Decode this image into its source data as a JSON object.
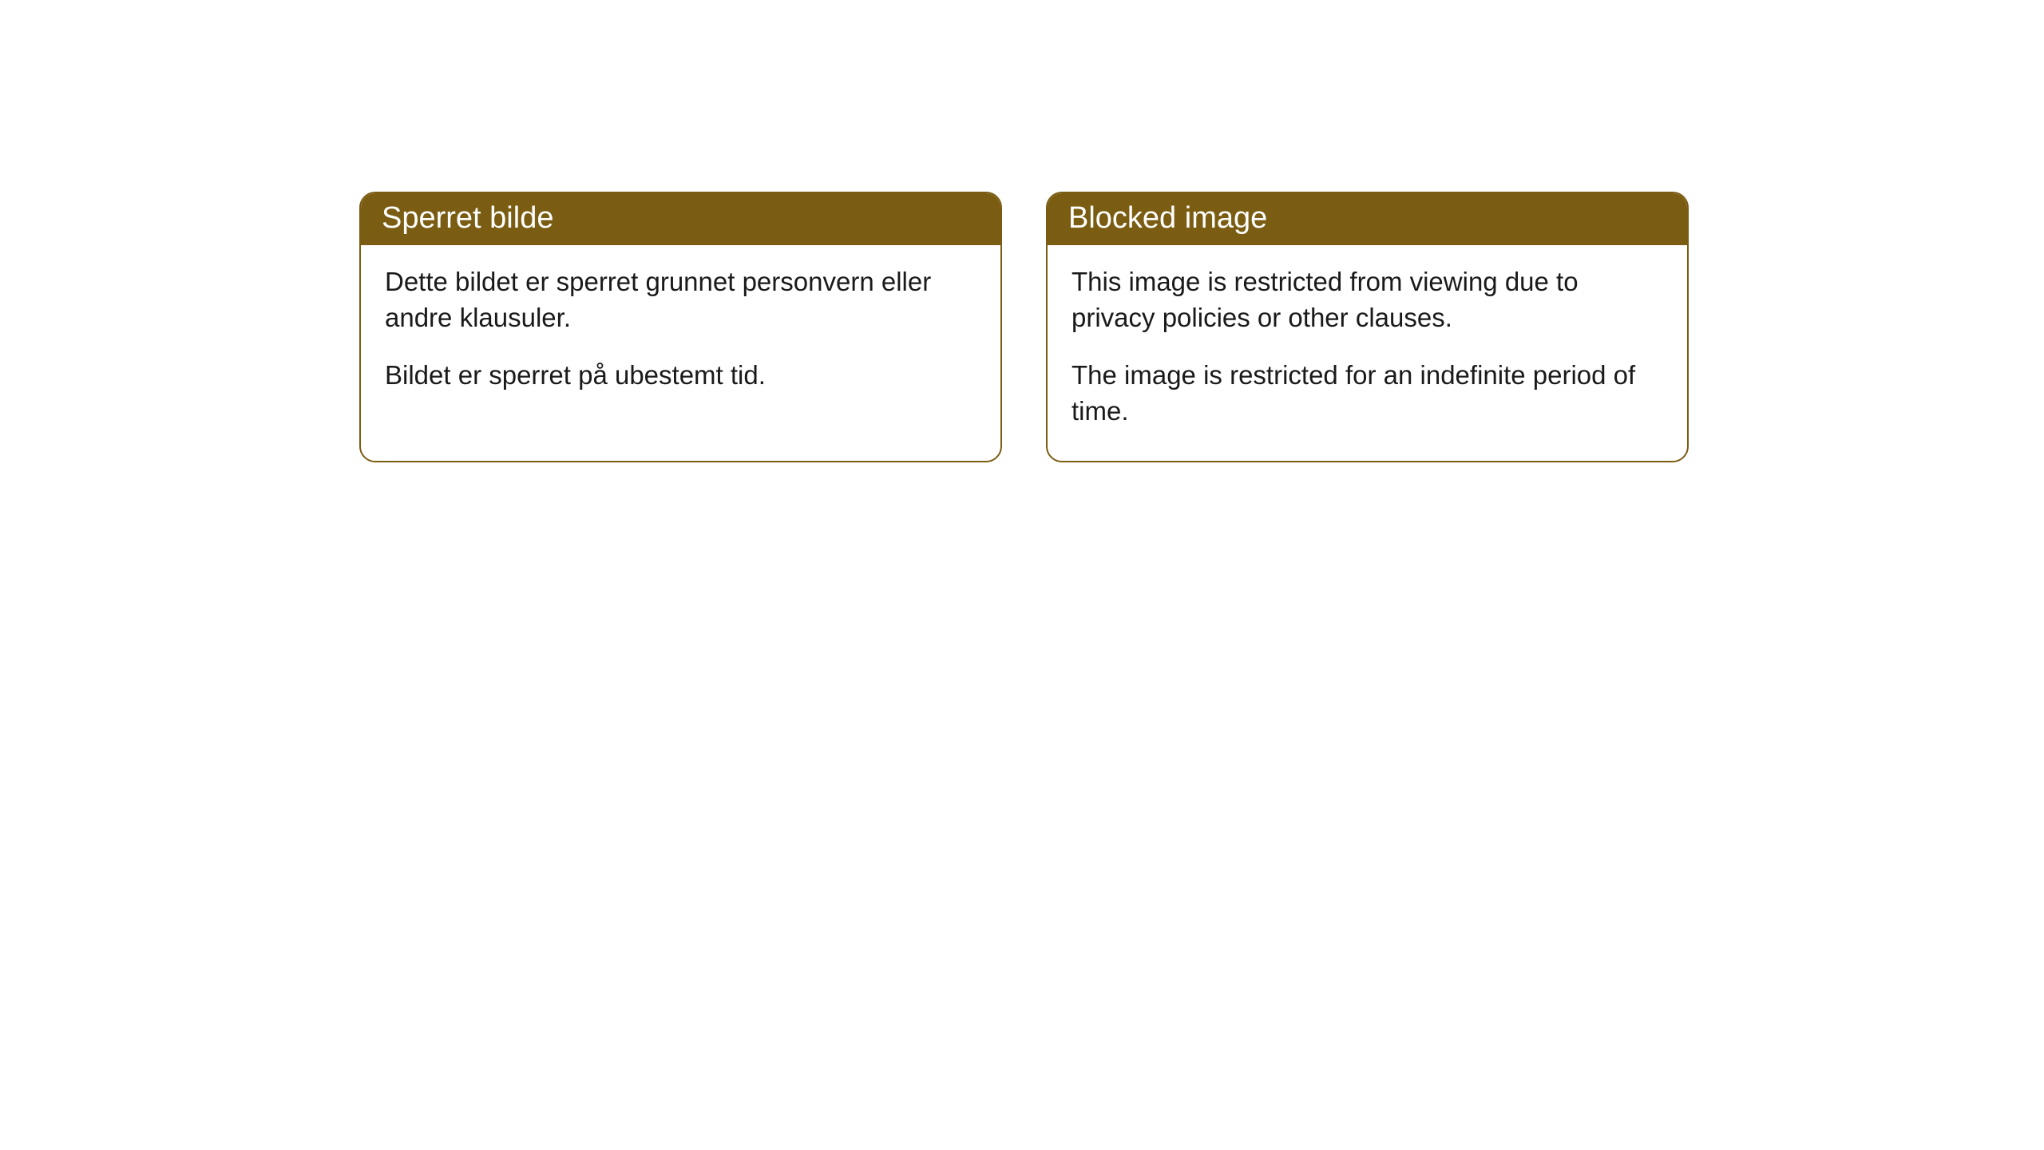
{
  "cards": [
    {
      "title": "Sperret bilde",
      "paragraph1": "Dette bildet er sperret grunnet personvern eller andre klausuler.",
      "paragraph2": "Bildet er sperret på ubestemt tid."
    },
    {
      "title": "Blocked image",
      "paragraph1": "This image is restricted from viewing due to privacy policies or other clauses.",
      "paragraph2": "The image is restricted for an indefinite period of time."
    }
  ],
  "style": {
    "header_bg_color": "#7a5d12",
    "header_text_color": "#ffffff",
    "border_color": "#7a5d12",
    "body_text_color": "#1a1a1a",
    "card_bg_color": "#ffffff",
    "border_radius": 20,
    "header_fontsize": 38,
    "body_fontsize": 33
  }
}
